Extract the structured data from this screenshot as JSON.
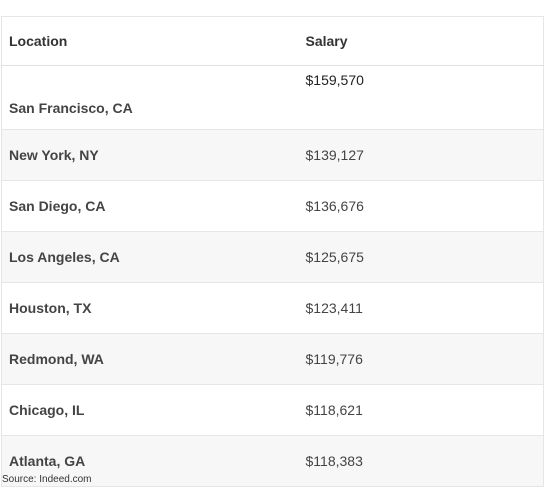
{
  "table": {
    "headers": {
      "location": "Location",
      "salary": "Salary"
    },
    "rows": [
      {
        "location": "San Francisco, CA",
        "salary": "$159,570"
      },
      {
        "location": "New York, NY",
        "salary": "$139,127"
      },
      {
        "location": "San Diego, CA",
        "salary": "$136,676"
      },
      {
        "location": "Los Angeles, CA",
        "salary": "$125,675"
      },
      {
        "location": "Houston, TX",
        "salary": "$123,411"
      },
      {
        "location": "Redmond, WA",
        "salary": "$119,776"
      },
      {
        "location": "Chicago, IL",
        "salary": "$118,621"
      },
      {
        "location": "Atlanta, GA",
        "salary": "$118,383"
      }
    ]
  },
  "footer": {
    "source": "Source: Indeed.com"
  }
}
